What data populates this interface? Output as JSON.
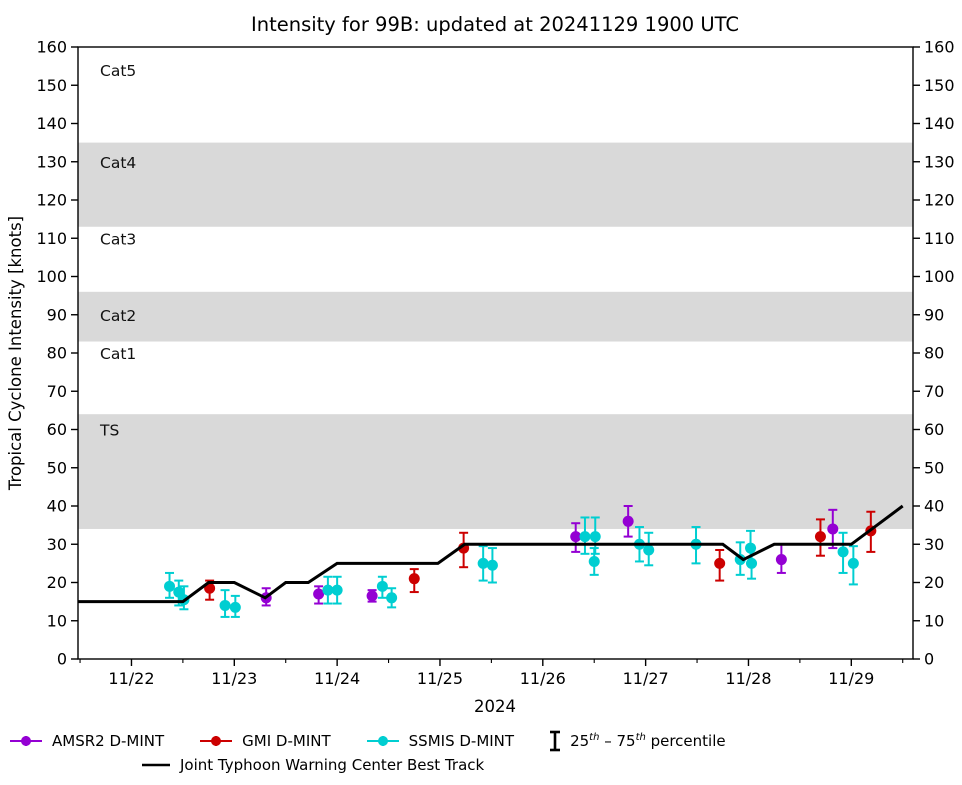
{
  "chart_data": {
    "type": "scatter",
    "title": "Intensity for 99B: updated at 20241129 1900 UTC",
    "ylabel": "Tropical Cyclone Intensity [knots]",
    "xlabel": "2024",
    "x_unit": "days after 2024-11-22 00:00 UTC",
    "xlim": [
      -0.52,
      7.6
    ],
    "ylim": [
      0,
      160
    ],
    "y_tick_step": 10,
    "y_ticks": [
      0,
      10,
      20,
      30,
      40,
      50,
      60,
      70,
      80,
      90,
      100,
      110,
      120,
      130,
      140,
      150,
      160
    ],
    "x_ticks": [
      {
        "day": 0,
        "label": "11/22"
      },
      {
        "day": 1,
        "label": "11/23"
      },
      {
        "day": 2,
        "label": "11/24"
      },
      {
        "day": 3,
        "label": "11/25"
      },
      {
        "day": 4,
        "label": "11/26"
      },
      {
        "day": 5,
        "label": "11/27"
      },
      {
        "day": 6,
        "label": "11/28"
      },
      {
        "day": 7,
        "label": "11/29"
      }
    ],
    "x_minor_tick_days": [
      -0.5,
      0.5,
      1.5,
      2.5,
      3.5,
      4.5,
      5.5,
      6.5,
      7.5
    ],
    "band_color": "#d9d9d9",
    "categories": [
      {
        "label": "TS",
        "band": [
          34,
          64
        ],
        "shaded": true,
        "label_kt": 60
      },
      {
        "label": "Cat1",
        "band": [
          64,
          83
        ],
        "shaded": false,
        "label_kt": 80
      },
      {
        "label": "Cat2",
        "band": [
          83,
          96
        ],
        "shaded": true,
        "label_kt": 90
      },
      {
        "label": "Cat3",
        "band": [
          96,
          113
        ],
        "shaded": false,
        "label_kt": 110
      },
      {
        "label": "Cat4",
        "band": [
          113,
          135
        ],
        "shaded": true,
        "label_kt": 130
      },
      {
        "label": "Cat5",
        "band": [
          135,
          160
        ],
        "shaded": false,
        "label_kt": 154
      }
    ],
    "series": [
      {
        "name": "AMSR2 D-MINT",
        "type": "scatter",
        "color": "#9400d3",
        "points": [
          {
            "day": 1.31,
            "kt": 16,
            "lo": 14,
            "hi": 18.5
          },
          {
            "day": 1.82,
            "kt": 17,
            "lo": 14.5,
            "hi": 19
          },
          {
            "day": 2.34,
            "kt": 16.5,
            "lo": 15,
            "hi": 18
          },
          {
            "day": 4.32,
            "kt": 32,
            "lo": 28,
            "hi": 35.5
          },
          {
            "day": 4.83,
            "kt": 36,
            "lo": 32,
            "hi": 40
          },
          {
            "day": 6.32,
            "kt": 26,
            "lo": 22.5,
            "hi": 30
          },
          {
            "day": 6.82,
            "kt": 34,
            "lo": 29,
            "hi": 39
          }
        ]
      },
      {
        "name": "GMI D-MINT",
        "type": "scatter",
        "color": "#cc0000",
        "points": [
          {
            "day": 0.76,
            "kt": 18.5,
            "lo": 15.5,
            "hi": 20.5
          },
          {
            "day": 2.75,
            "kt": 21,
            "lo": 17.5,
            "hi": 23.5
          },
          {
            "day": 3.23,
            "kt": 29,
            "lo": 24,
            "hi": 33
          },
          {
            "day": 5.72,
            "kt": 25,
            "lo": 20.5,
            "hi": 28.5
          },
          {
            "day": 6.7,
            "kt": 32,
            "lo": 27,
            "hi": 36.5
          },
          {
            "day": 7.19,
            "kt": 33.5,
            "lo": 28,
            "hi": 38.5
          }
        ]
      },
      {
        "name": "SSMIS D-MINT",
        "type": "scatter",
        "color": "#00ced1",
        "points": [
          {
            "day": 0.37,
            "kt": 19,
            "lo": 16,
            "hi": 22.5
          },
          {
            "day": 0.46,
            "kt": 17.5,
            "lo": 14,
            "hi": 20.5
          },
          {
            "day": 0.51,
            "kt": 15.5,
            "lo": 13,
            "hi": 19
          },
          {
            "day": 0.91,
            "kt": 14,
            "lo": 11,
            "hi": 18
          },
          {
            "day": 1.01,
            "kt": 13.5,
            "lo": 11,
            "hi": 16.5
          },
          {
            "day": 1.91,
            "kt": 18,
            "lo": 14.5,
            "hi": 21.5
          },
          {
            "day": 2.0,
            "kt": 18,
            "lo": 14.5,
            "hi": 21.5
          },
          {
            "day": 2.44,
            "kt": 19,
            "lo": 16,
            "hi": 21.5
          },
          {
            "day": 2.53,
            "kt": 16,
            "lo": 13.5,
            "hi": 18.5
          },
          {
            "day": 3.42,
            "kt": 25,
            "lo": 20.5,
            "hi": 29.5
          },
          {
            "day": 3.51,
            "kt": 24.5,
            "lo": 20,
            "hi": 29
          },
          {
            "day": 4.41,
            "kt": 32,
            "lo": 27.5,
            "hi": 37
          },
          {
            "day": 4.5,
            "kt": 25.5,
            "lo": 22,
            "hi": 29
          },
          {
            "day": 4.51,
            "kt": 32,
            "lo": 27.5,
            "hi": 37
          },
          {
            "day": 4.94,
            "kt": 30,
            "lo": 25.5,
            "hi": 34.5
          },
          {
            "day": 5.03,
            "kt": 28.5,
            "lo": 24.5,
            "hi": 33
          },
          {
            "day": 5.49,
            "kt": 30,
            "lo": 25,
            "hi": 34.5
          },
          {
            "day": 5.92,
            "kt": 26,
            "lo": 22,
            "hi": 30.5
          },
          {
            "day": 6.02,
            "kt": 29,
            "lo": 25,
            "hi": 33.5
          },
          {
            "day": 6.03,
            "kt": 25,
            "lo": 21,
            "hi": 29
          },
          {
            "day": 6.92,
            "kt": 28,
            "lo": 22.5,
            "hi": 33
          },
          {
            "day": 7.02,
            "kt": 25,
            "lo": 19.5,
            "hi": 29.5
          }
        ]
      },
      {
        "name": "Joint Typhoon Warning Center Best Track",
        "type": "line",
        "color": "#000000",
        "points": [
          [
            -0.52,
            15
          ],
          [
            0.5,
            15
          ],
          [
            0.75,
            20
          ],
          [
            1.0,
            20
          ],
          [
            1.3,
            16
          ],
          [
            1.5,
            20
          ],
          [
            1.72,
            20
          ],
          [
            2.0,
            25
          ],
          [
            2.98,
            25
          ],
          [
            3.24,
            30
          ],
          [
            5.75,
            30
          ],
          [
            5.95,
            26
          ],
          [
            6.25,
            30
          ],
          [
            7.0,
            30
          ],
          [
            7.5,
            40
          ]
        ]
      }
    ]
  },
  "legend": {
    "amsr2": "AMSR2 D-MINT",
    "gmi": "GMI D-MINT",
    "ssmis": "SSMIS D-MINT",
    "percentile": {
      "p1": "25",
      "sup1": "th",
      "mid": " – 75",
      "sup2": "th",
      "tail": " percentile"
    },
    "best_track": "Joint Typhoon Warning Center Best Track"
  }
}
